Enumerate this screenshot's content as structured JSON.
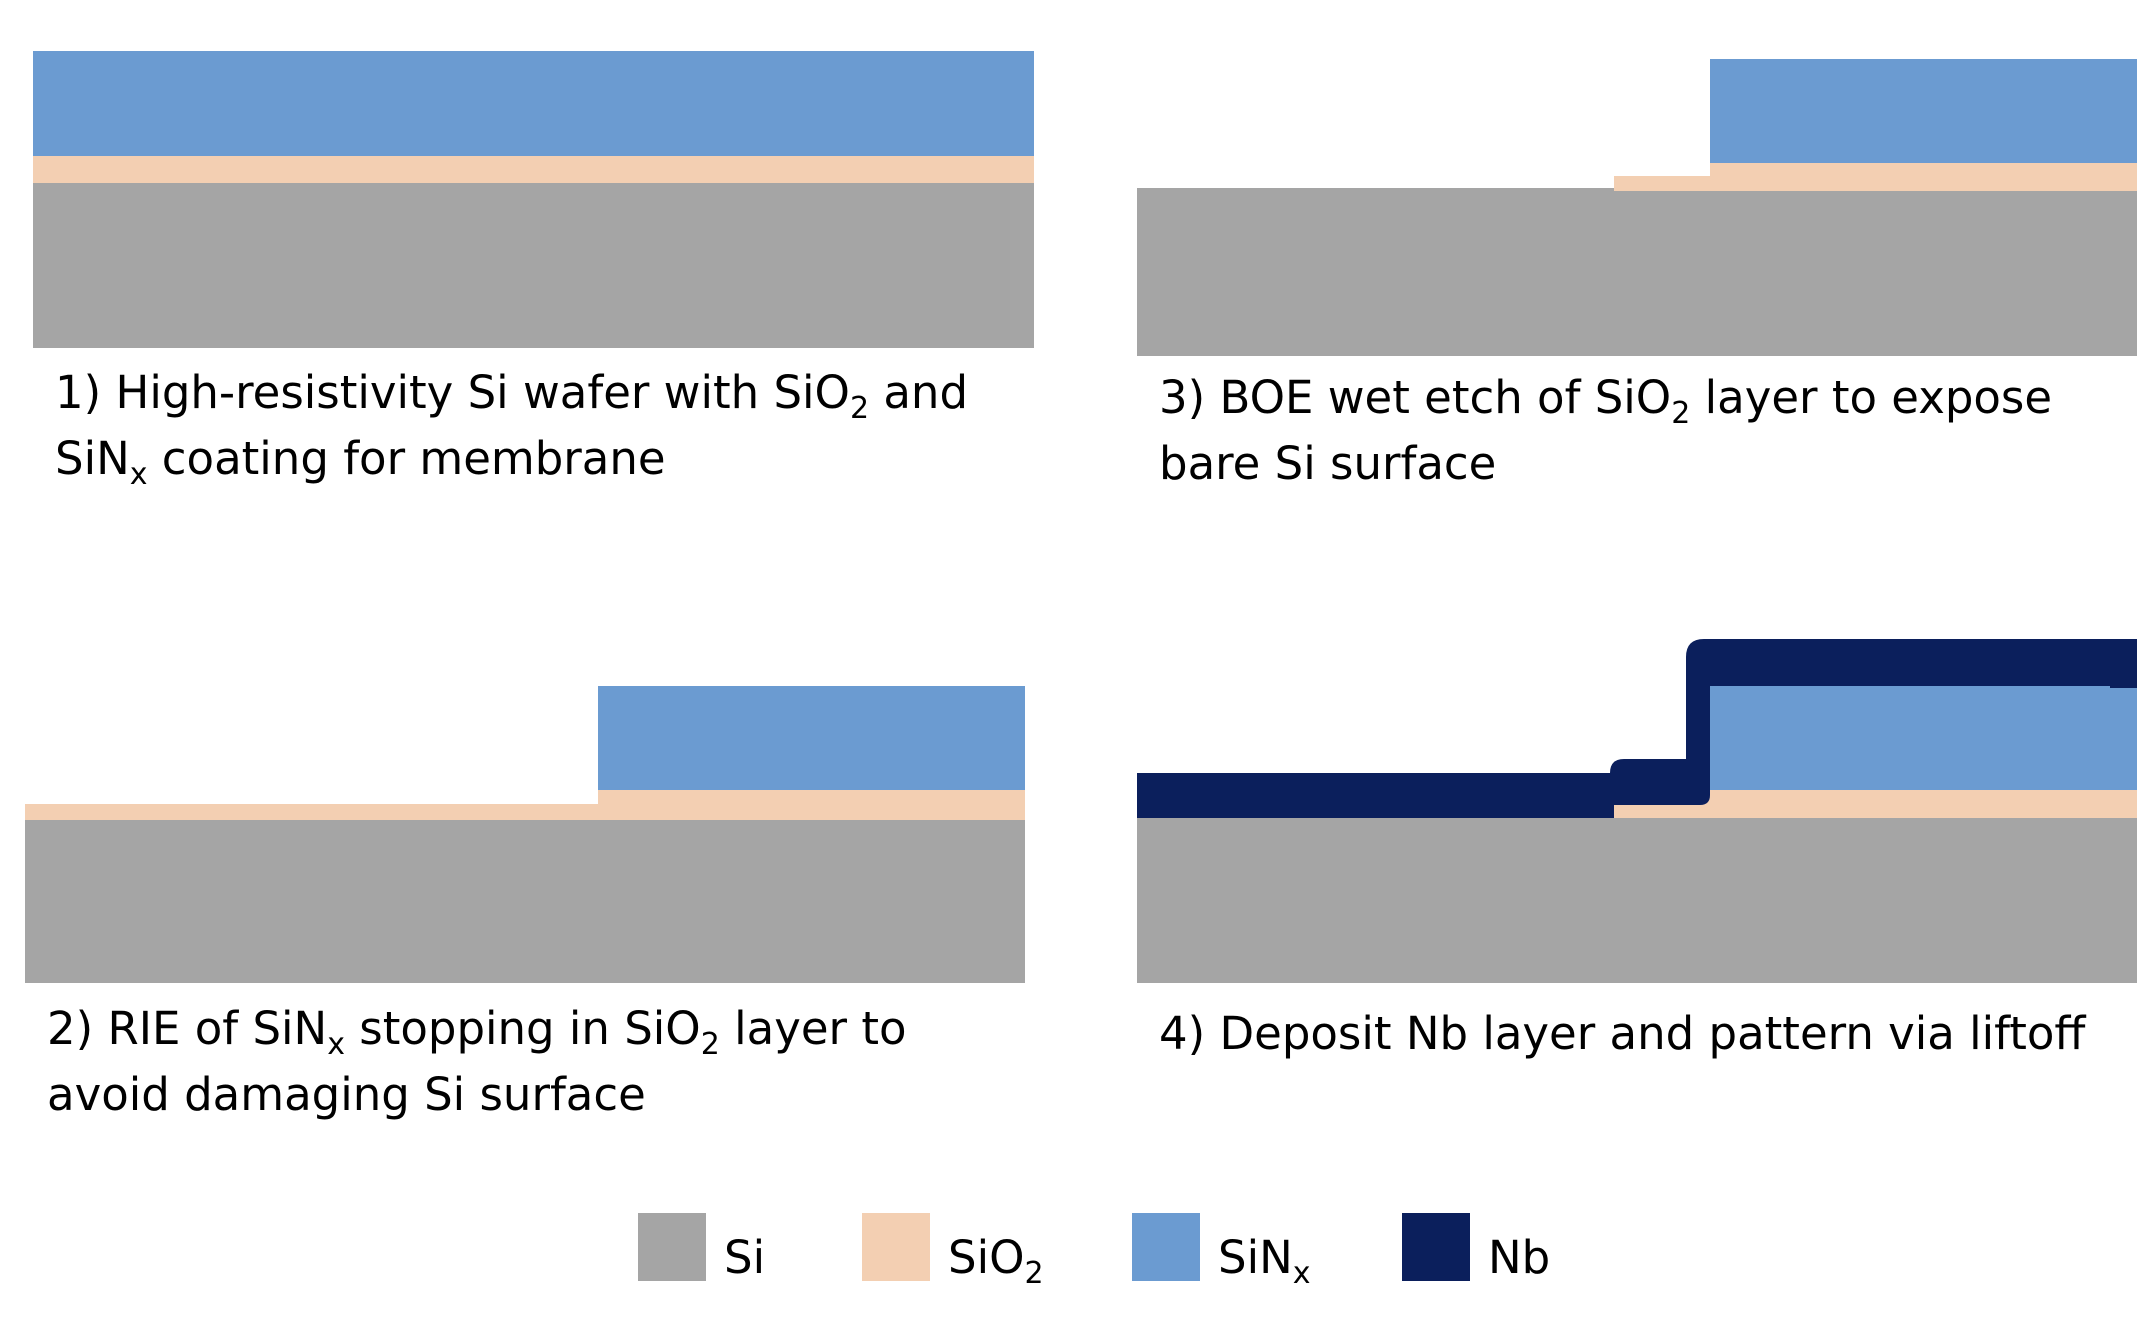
{
  "colors": {
    "si": "#a5a5a5",
    "sio2": "#f3cfb2",
    "sinx": "#6b9bd1",
    "nb": "#0b1f5c"
  },
  "steps": [
    {
      "id": 1,
      "line1": {
        "a": "1) High-resistivity Si wafer with SiO",
        "sub": "2",
        "b": " and"
      },
      "line2": {
        "a": "SiN",
        "sub": "x",
        "b": " coating for membrane"
      }
    },
    {
      "id": 2,
      "line1": {
        "a": "2) RIE of SiN",
        "sub1": "x",
        "b": " stopping in SiO",
        "sub2": "2",
        "c": " layer to"
      },
      "line2": "avoid damaging Si surface"
    },
    {
      "id": 3,
      "line1": {
        "a": "3) BOE wet etch of SiO",
        "sub": "2",
        "b": " layer to expose"
      },
      "line2": "bare Si surface"
    },
    {
      "id": 4,
      "line1": "4) Deposit Nb layer and pattern via liftoff"
    }
  ],
  "legend": [
    {
      "label": "Si"
    },
    {
      "label": "SiO",
      "sub": "2"
    },
    {
      "label": "SiN",
      "sub": "x"
    },
    {
      "label": "Nb"
    }
  ]
}
